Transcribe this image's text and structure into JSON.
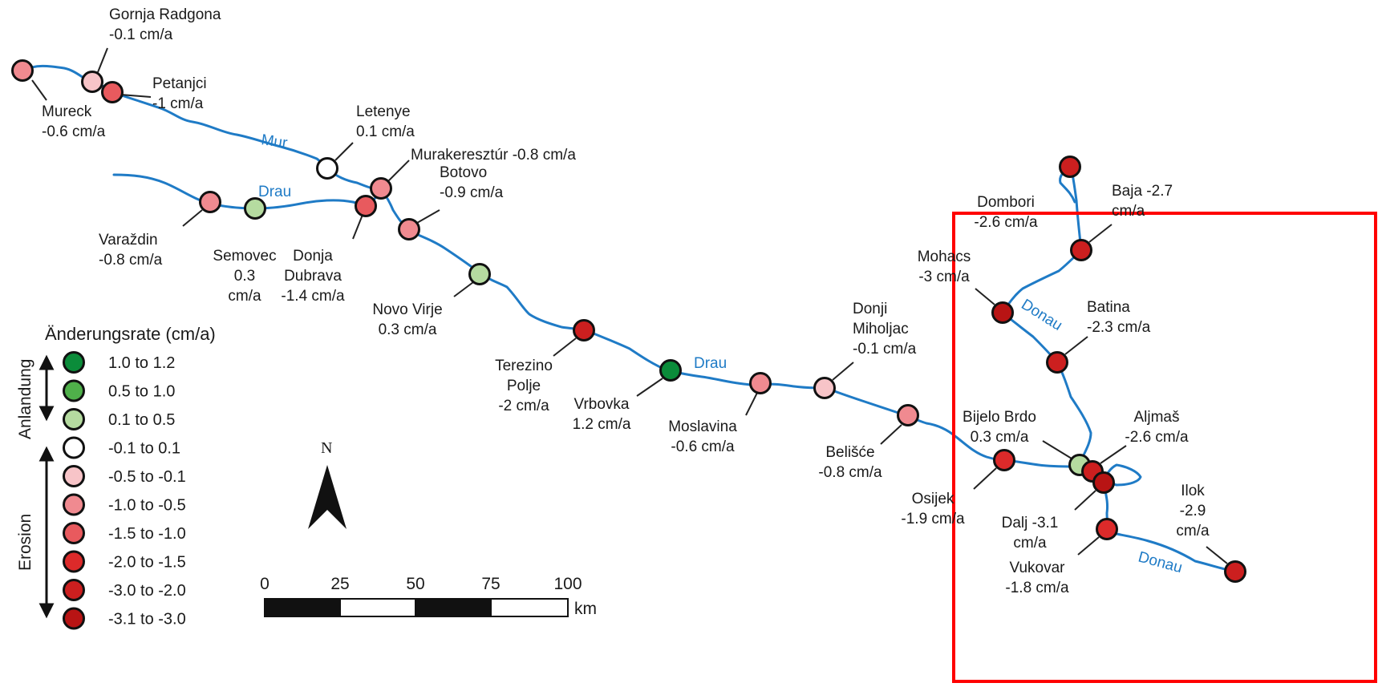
{
  "colors": {
    "river": "#1f7bc6",
    "highlight_box": "#ff0000",
    "leader": "#222222",
    "marker_stroke": "#111111"
  },
  "rivers": {
    "mur": "Mur",
    "drau_upper": "Drau",
    "drau_lower": "Drau",
    "donau_upper": "Donau",
    "donau_lower": "Donau"
  },
  "legend": {
    "title": "Änderungsrate (cm/a)",
    "accretion_label": "Anlandung",
    "erosion_label": "Erosion",
    "classes": [
      {
        "range": "1.0 to 1.2",
        "color": "#0b8c3a"
      },
      {
        "range": "0.5 to 1.0",
        "color": "#4fb04a"
      },
      {
        "range": "0.1 to 0.5",
        "color": "#b5dba0"
      },
      {
        "range": "-0.1 to 0.1",
        "color": "#ffffff"
      },
      {
        "range": "-0.5 to -0.1",
        "color": "#f7c4c8"
      },
      {
        "range": "-1.0 to -0.5",
        "color": "#f08a90"
      },
      {
        "range": "-1.5 to -1.0",
        "color": "#e85a5e"
      },
      {
        "range": "-2.0 to -1.5",
        "color": "#dc2a2a"
      },
      {
        "range": "-3.0 to -2.0",
        "color": "#cc1f1f"
      },
      {
        "range": "-3.1 to -3.0",
        "color": "#b81414"
      }
    ]
  },
  "north_arrow": {
    "label": "N"
  },
  "scale_bar": {
    "ticks": [
      "0",
      "25",
      "50",
      "75",
      "100"
    ],
    "unit": "km"
  },
  "stations": [
    {
      "id": "mureck",
      "lines": [
        "Mureck",
        "-0.6 cm/a"
      ],
      "color": "#f08a90"
    },
    {
      "id": "gornja-radgona",
      "lines": [
        "Gornja Radgona",
        "-0.1 cm/a"
      ],
      "color": "#f7c4c8"
    },
    {
      "id": "petanjci",
      "lines": [
        "Petanjci",
        "-1 cm/a"
      ],
      "color": "#e85a5e"
    },
    {
      "id": "letenye",
      "lines": [
        "Letenye",
        "0.1 cm/a"
      ],
      "color": "#ffffff"
    },
    {
      "id": "murakeresztur",
      "lines": [
        "Murakeresztúr -0.8 cm/a"
      ],
      "color": "#f08a90"
    },
    {
      "id": "botovo",
      "lines": [
        "Botovo",
        "-0.9 cm/a"
      ],
      "color": "#f08a90"
    },
    {
      "id": "varazdin",
      "lines": [
        "Varaždin",
        "-0.8 cm/a"
      ],
      "color": "#f08a90"
    },
    {
      "id": "semovec",
      "lines": [
        "Semovec",
        "0.3",
        "cm/a"
      ],
      "color": "#b5dba0"
    },
    {
      "id": "donja-dubrava",
      "lines": [
        "Donja",
        "Dubrava",
        "-1.4 cm/a"
      ],
      "color": "#e85a5e"
    },
    {
      "id": "novo-virje",
      "lines": [
        "Novo Virje",
        "0.3 cm/a"
      ],
      "color": "#b5dba0"
    },
    {
      "id": "terezino-polje",
      "lines": [
        "Terezino",
        "Polje",
        "-2 cm/a"
      ],
      "color": "#cc1f1f"
    },
    {
      "id": "vrbovka",
      "lines": [
        "Vrbovka",
        "1.2 cm/a"
      ],
      "color": "#0b8c3a"
    },
    {
      "id": "moslavina",
      "lines": [
        "Moslavina",
        "-0.6 cm/a"
      ],
      "color": "#f08a90"
    },
    {
      "id": "donji-miholjac",
      "lines": [
        "Donji",
        "Miholjac",
        "-0.1 cm/a"
      ],
      "color": "#f7c4c8"
    },
    {
      "id": "belisce",
      "lines": [
        "Belišće",
        "-0.8 cm/a"
      ],
      "color": "#f08a90"
    },
    {
      "id": "dombori",
      "lines": [
        "Dombori",
        "-2.6 cm/a"
      ],
      "color": "#cc1f1f"
    },
    {
      "id": "baja",
      "lines": [
        "Baja -2.7",
        "cm/a"
      ],
      "color": "#cc1f1f"
    },
    {
      "id": "mohacs",
      "lines": [
        "Mohacs",
        "-3 cm/a"
      ],
      "color": "#b81414"
    },
    {
      "id": "batina",
      "lines": [
        "Batina",
        "-2.3 cm/a"
      ],
      "color": "#cc1f1f"
    },
    {
      "id": "bijelo-brdo",
      "lines": [
        "Bijelo Brdo",
        "0.3 cm/a"
      ],
      "color": "#b5dba0"
    },
    {
      "id": "aljmas",
      "lines": [
        "Aljmaš",
        "-2.6 cm/a"
      ],
      "color": "#cc1f1f"
    },
    {
      "id": "osijek",
      "lines": [
        "Osijek",
        "-1.9 cm/a"
      ],
      "color": "#dc2a2a"
    },
    {
      "id": "dalj",
      "lines": [
        "Dalj -3.1",
        "cm/a"
      ],
      "color": "#b81414"
    },
    {
      "id": "vukovar",
      "lines": [
        "Vukovar",
        "-1.8 cm/a"
      ],
      "color": "#dc2a2a"
    },
    {
      "id": "ilok",
      "lines": [
        "Ilok",
        "-2.9",
        "cm/a"
      ],
      "color": "#cc1f1f"
    }
  ]
}
